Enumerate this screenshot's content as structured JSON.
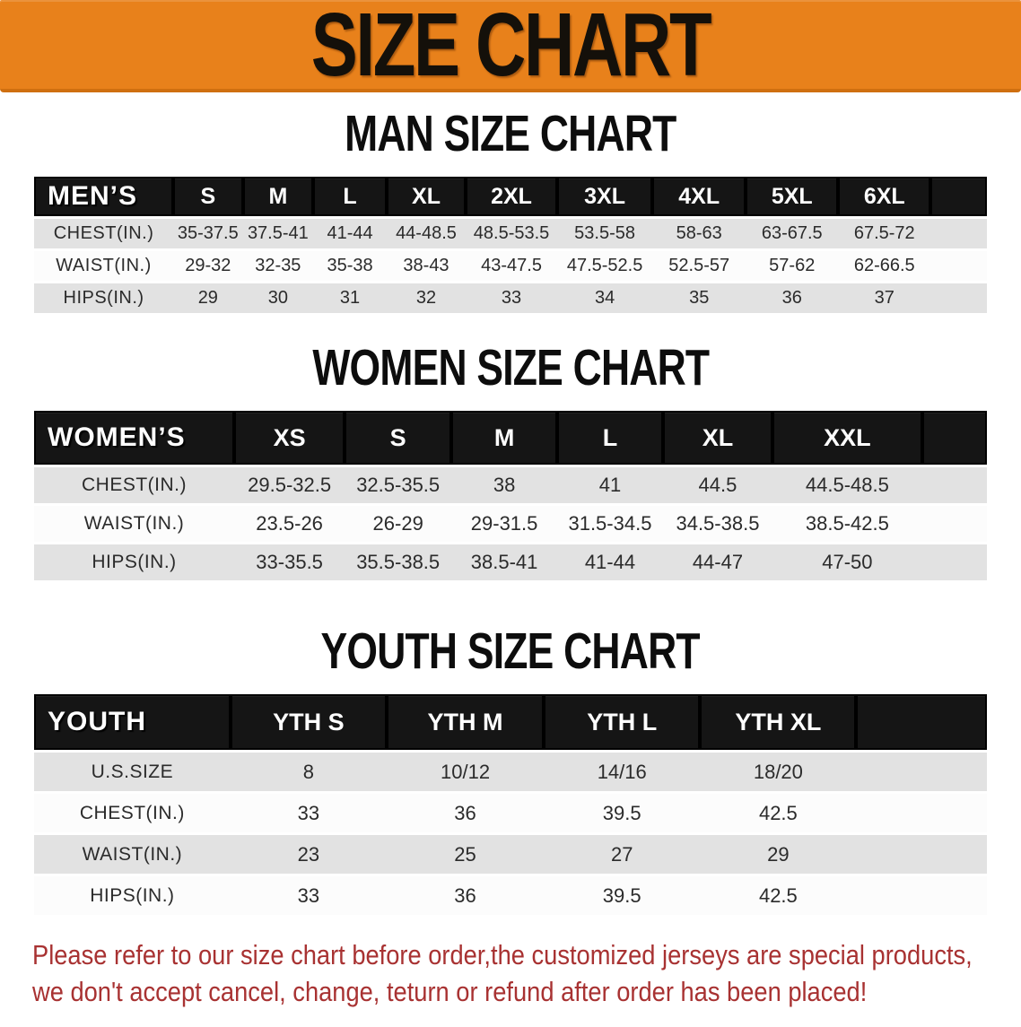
{
  "banner": {
    "title": "SIZE CHART"
  },
  "colors": {
    "banner_bg": "#e8811b",
    "banner_edge": "#cf6f10",
    "header_bg": "#151515",
    "row_gray": "#e2e2e2",
    "row_white": "#fcfcfc",
    "footer_text": "#a83232"
  },
  "sections": [
    {
      "id": "men",
      "heading": "MAN SIZE CHART",
      "corner_label": "MEN’S",
      "columns": [
        "S",
        "M",
        "L",
        "XL",
        "2XL",
        "3XL",
        "4XL",
        "5XL",
        "6XL"
      ],
      "rows": [
        {
          "label": "CHEST(IN.)",
          "values": [
            "35-37.5",
            "37.5-41",
            "41-44",
            "44-48.5",
            "48.5-53.5",
            "53.5-58",
            "58-63",
            "63-67.5",
            "67.5-72"
          ]
        },
        {
          "label": "WAIST(IN.)",
          "values": [
            "29-32",
            "32-35",
            "35-38",
            "38-43",
            "43-47.5",
            "47.5-52.5",
            "52.5-57",
            "57-62",
            "62-66.5"
          ]
        },
        {
          "label": "HIPS(IN.)",
          "values": [
            "29",
            "30",
            "31",
            "32",
            "33",
            "34",
            "35",
            "36",
            "37"
          ]
        }
      ]
    },
    {
      "id": "women",
      "heading": "WOMEN SIZE CHART",
      "corner_label": "WOMEN’S",
      "columns": [
        "XS",
        "S",
        "M",
        "L",
        "XL",
        "XXL"
      ],
      "rows": [
        {
          "label": "CHEST(IN.)",
          "values": [
            "29.5-32.5",
            "32.5-35.5",
            "38",
            "41",
            "44.5",
            "44.5-48.5"
          ]
        },
        {
          "label": "WAIST(IN.)",
          "values": [
            "23.5-26",
            "26-29",
            "29-31.5",
            "31.5-34.5",
            "34.5-38.5",
            "38.5-42.5"
          ]
        },
        {
          "label": "HIPS(IN.)",
          "values": [
            "33-35.5",
            "35.5-38.5",
            "38.5-41",
            "41-44",
            "44-47",
            "47-50"
          ]
        }
      ]
    },
    {
      "id": "youth",
      "heading": "YOUTH SIZE CHART",
      "corner_label": "YOUTH",
      "columns": [
        "YTH S",
        "YTH M",
        "YTH L",
        "YTH XL"
      ],
      "rows": [
        {
          "label": "U.S.SIZE",
          "values": [
            "8",
            "10/12",
            "14/16",
            "18/20"
          ]
        },
        {
          "label": "CHEST(IN.)",
          "values": [
            "33",
            "36",
            "39.5",
            "42.5"
          ]
        },
        {
          "label": "WAIST(IN.)",
          "values": [
            "23",
            "25",
            "27",
            "29"
          ]
        },
        {
          "label": "HIPS(IN.)",
          "values": [
            "33",
            "36",
            "39.5",
            "42.5"
          ]
        }
      ]
    }
  ],
  "footer": {
    "lines": [
      "Please refer to our size chart before order,the customized jerseys are special products,",
      "we don't accept cancel, change, teturn or refund after order has been placed!"
    ]
  }
}
